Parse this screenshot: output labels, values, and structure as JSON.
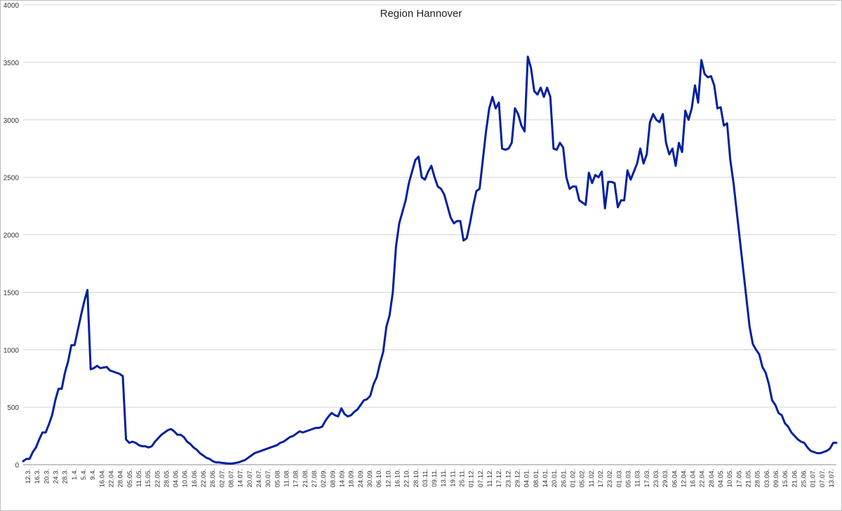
{
  "chart_data": {
    "type": "line",
    "title": "Region Hannover",
    "xlabel": "",
    "ylabel": "",
    "ylim": [
      0,
      4000
    ],
    "yticks": [
      0,
      500,
      1000,
      1500,
      2000,
      2500,
      3000,
      3500,
      4000
    ],
    "grid": true,
    "legend": "none",
    "x_tick_labels": [
      "12.3.",
      "16.3.",
      "20.3.",
      "24.3.",
      "28.3.",
      "1.4.",
      "5.4.",
      "9.4.",
      "16.04.",
      "22.04.",
      "28.04.",
      "05.05.",
      "11.05.",
      "15.05.",
      "22.05.",
      "28.05.",
      "04.06.",
      "10.06.",
      "16.06.",
      "22.06.",
      "26.06.",
      "02.07.",
      "08.07.",
      "14.07.",
      "20.07.",
      "24.07.",
      "30.07.",
      "05.08.",
      "11.08.",
      "17.08.",
      "21.08.",
      "27.08.",
      "02.09.",
      "08.09.",
      "14.09.",
      "18.09.",
      "24.09.",
      "30.09.",
      "06.10.",
      "12.10.",
      "16.10.",
      "22.10.",
      "28.10.",
      "03.11.",
      "09.11.",
      "13.11.",
      "19.11.",
      "25.11.",
      "01.12.",
      "07.12.",
      "11.12.",
      "17.12.",
      "23.12.",
      "29.12.",
      "04.01.",
      "08.01.",
      "14.01.",
      "20.01.",
      "26.01.",
      "01.02.",
      "05.02.",
      "11.02.",
      "17.02.",
      "23.02.",
      "01.03.",
      "05.03.",
      "11.03.",
      "17.03.",
      "23.03.",
      "29.03.",
      "06.04.",
      "12.04.",
      "16.04.",
      "22.04.",
      "28.04.",
      "04.05.",
      "10.05.",
      "17.05.",
      "21.05.",
      "28.05.",
      "03.06.",
      "09.06.",
      "15.06.",
      "21.06.",
      "25.06.",
      "01.07.",
      "07.07.",
      "13.07."
    ],
    "series": [
      {
        "color": "#00209f",
        "points": [
          [
            0,
            30
          ],
          [
            1,
            50
          ],
          [
            2,
            50
          ],
          [
            3,
            110
          ],
          [
            4,
            150
          ],
          [
            5,
            220
          ],
          [
            6,
            280
          ],
          [
            7,
            280
          ],
          [
            8,
            350
          ],
          [
            9,
            430
          ],
          [
            10,
            560
          ],
          [
            11,
            660
          ],
          [
            12,
            660
          ],
          [
            13,
            800
          ],
          [
            14,
            900
          ],
          [
            15,
            1040
          ],
          [
            16,
            1040
          ],
          [
            17,
            1170
          ],
          [
            18,
            1300
          ],
          [
            19,
            1420
          ],
          [
            20,
            1520
          ],
          [
            21,
            830
          ],
          [
            22,
            840
          ],
          [
            23,
            860
          ],
          [
            24,
            840
          ],
          [
            25,
            845
          ],
          [
            26,
            850
          ],
          [
            27,
            820
          ],
          [
            28,
            810
          ],
          [
            29,
            800
          ],
          [
            30,
            790
          ],
          [
            31,
            770
          ],
          [
            32,
            220
          ],
          [
            33,
            190
          ],
          [
            34,
            200
          ],
          [
            35,
            190
          ],
          [
            36,
            170
          ],
          [
            37,
            160
          ],
          [
            38,
            160
          ],
          [
            39,
            150
          ],
          [
            40,
            160
          ],
          [
            41,
            200
          ],
          [
            42,
            230
          ],
          [
            43,
            260
          ],
          [
            44,
            280
          ],
          [
            45,
            300
          ],
          [
            46,
            310
          ],
          [
            47,
            290
          ],
          [
            48,
            260
          ],
          [
            49,
            260
          ],
          [
            50,
            240
          ],
          [
            51,
            200
          ],
          [
            52,
            180
          ],
          [
            53,
            150
          ],
          [
            54,
            130
          ],
          [
            55,
            100
          ],
          [
            56,
            80
          ],
          [
            57,
            60
          ],
          [
            58,
            50
          ],
          [
            59,
            30
          ],
          [
            60,
            20
          ],
          [
            61,
            20
          ],
          [
            62,
            15
          ],
          [
            63,
            12
          ],
          [
            64,
            10
          ],
          [
            65,
            10
          ],
          [
            66,
            15
          ],
          [
            67,
            20
          ],
          [
            68,
            30
          ],
          [
            69,
            40
          ],
          [
            70,
            60
          ],
          [
            71,
            80
          ],
          [
            72,
            100
          ],
          [
            73,
            110
          ],
          [
            74,
            120
          ],
          [
            75,
            130
          ],
          [
            76,
            140
          ],
          [
            77,
            150
          ],
          [
            78,
            160
          ],
          [
            79,
            170
          ],
          [
            80,
            190
          ],
          [
            81,
            200
          ],
          [
            82,
            220
          ],
          [
            83,
            240
          ],
          [
            84,
            250
          ],
          [
            85,
            270
          ],
          [
            86,
            290
          ],
          [
            87,
            280
          ],
          [
            88,
            290
          ],
          [
            89,
            300
          ],
          [
            90,
            310
          ],
          [
            91,
            320
          ],
          [
            92,
            320
          ],
          [
            93,
            330
          ],
          [
            94,
            380
          ],
          [
            95,
            420
          ],
          [
            96,
            450
          ],
          [
            97,
            430
          ],
          [
            98,
            420
          ],
          [
            99,
            490
          ],
          [
            100,
            440
          ],
          [
            101,
            420
          ],
          [
            102,
            430
          ],
          [
            103,
            460
          ],
          [
            104,
            480
          ],
          [
            105,
            520
          ],
          [
            106,
            560
          ],
          [
            107,
            570
          ],
          [
            108,
            600
          ],
          [
            109,
            700
          ],
          [
            110,
            760
          ],
          [
            111,
            880
          ],
          [
            112,
            980
          ],
          [
            113,
            1200
          ],
          [
            114,
            1300
          ],
          [
            115,
            1500
          ],
          [
            116,
            1900
          ],
          [
            117,
            2100
          ],
          [
            118,
            2200
          ],
          [
            119,
            2300
          ],
          [
            120,
            2450
          ],
          [
            121,
            2550
          ],
          [
            122,
            2650
          ],
          [
            123,
            2680
          ],
          [
            124,
            2500
          ],
          [
            125,
            2480
          ],
          [
            126,
            2550
          ],
          [
            127,
            2600
          ],
          [
            128,
            2500
          ],
          [
            129,
            2420
          ],
          [
            130,
            2400
          ],
          [
            131,
            2350
          ],
          [
            132,
            2250
          ],
          [
            133,
            2150
          ],
          [
            134,
            2100
          ],
          [
            135,
            2120
          ],
          [
            136,
            2120
          ],
          [
            137,
            1950
          ],
          [
            138,
            1970
          ],
          [
            139,
            2100
          ],
          [
            140,
            2250
          ],
          [
            141,
            2380
          ],
          [
            142,
            2400
          ],
          [
            143,
            2650
          ],
          [
            144,
            2900
          ],
          [
            145,
            3100
          ],
          [
            146,
            3200
          ],
          [
            147,
            3100
          ],
          [
            148,
            3150
          ],
          [
            149,
            2750
          ],
          [
            150,
            2740
          ],
          [
            151,
            2750
          ],
          [
            152,
            2800
          ],
          [
            153,
            3100
          ],
          [
            154,
            3050
          ],
          [
            155,
            2950
          ],
          [
            156,
            2900
          ],
          [
            157,
            3550
          ],
          [
            158,
            3450
          ],
          [
            159,
            3250
          ],
          [
            160,
            3220
          ],
          [
            161,
            3280
          ],
          [
            162,
            3200
          ],
          [
            163,
            3280
          ],
          [
            164,
            3200
          ],
          [
            165,
            2750
          ],
          [
            166,
            2740
          ],
          [
            167,
            2800
          ],
          [
            168,
            2760
          ],
          [
            169,
            2500
          ],
          [
            170,
            2400
          ],
          [
            171,
            2420
          ],
          [
            172,
            2420
          ],
          [
            173,
            2300
          ],
          [
            174,
            2280
          ],
          [
            175,
            2260
          ],
          [
            176,
            2540
          ],
          [
            177,
            2450
          ],
          [
            178,
            2520
          ],
          [
            179,
            2500
          ],
          [
            180,
            2550
          ],
          [
            181,
            2230
          ],
          [
            182,
            2460
          ],
          [
            183,
            2460
          ],
          [
            184,
            2450
          ],
          [
            185,
            2240
          ],
          [
            186,
            2300
          ],
          [
            187,
            2300
          ],
          [
            188,
            2560
          ],
          [
            189,
            2480
          ],
          [
            190,
            2550
          ],
          [
            191,
            2620
          ],
          [
            192,
            2750
          ],
          [
            193,
            2620
          ],
          [
            194,
            2700
          ],
          [
            195,
            2980
          ],
          [
            196,
            3050
          ],
          [
            197,
            3000
          ],
          [
            198,
            2980
          ],
          [
            199,
            3050
          ],
          [
            200,
            2800
          ],
          [
            201,
            2700
          ],
          [
            202,
            2750
          ],
          [
            203,
            2600
          ],
          [
            204,
            2800
          ],
          [
            205,
            2720
          ],
          [
            206,
            3080
          ],
          [
            207,
            3000
          ],
          [
            208,
            3100
          ],
          [
            209,
            3300
          ],
          [
            210,
            3150
          ],
          [
            211,
            3520
          ],
          [
            212,
            3400
          ],
          [
            213,
            3370
          ],
          [
            214,
            3380
          ],
          [
            215,
            3300
          ],
          [
            216,
            3100
          ],
          [
            217,
            3110
          ],
          [
            218,
            2950
          ],
          [
            219,
            2970
          ],
          [
            220,
            2650
          ],
          [
            221,
            2450
          ],
          [
            222,
            2200
          ],
          [
            223,
            1950
          ],
          [
            224,
            1700
          ],
          [
            225,
            1450
          ],
          [
            226,
            1200
          ],
          [
            227,
            1050
          ],
          [
            228,
            1000
          ],
          [
            229,
            960
          ],
          [
            230,
            850
          ],
          [
            231,
            800
          ],
          [
            232,
            700
          ],
          [
            233,
            560
          ],
          [
            234,
            520
          ],
          [
            235,
            450
          ],
          [
            236,
            430
          ],
          [
            237,
            360
          ],
          [
            238,
            330
          ],
          [
            239,
            280
          ],
          [
            240,
            250
          ],
          [
            241,
            220
          ],
          [
            242,
            200
          ],
          [
            243,
            190
          ],
          [
            244,
            150
          ],
          [
            245,
            120
          ],
          [
            246,
            110
          ],
          [
            247,
            100
          ],
          [
            248,
            100
          ],
          [
            249,
            110
          ],
          [
            250,
            120
          ],
          [
            251,
            140
          ],
          [
            252,
            190
          ],
          [
            253,
            190
          ]
        ]
      }
    ]
  }
}
